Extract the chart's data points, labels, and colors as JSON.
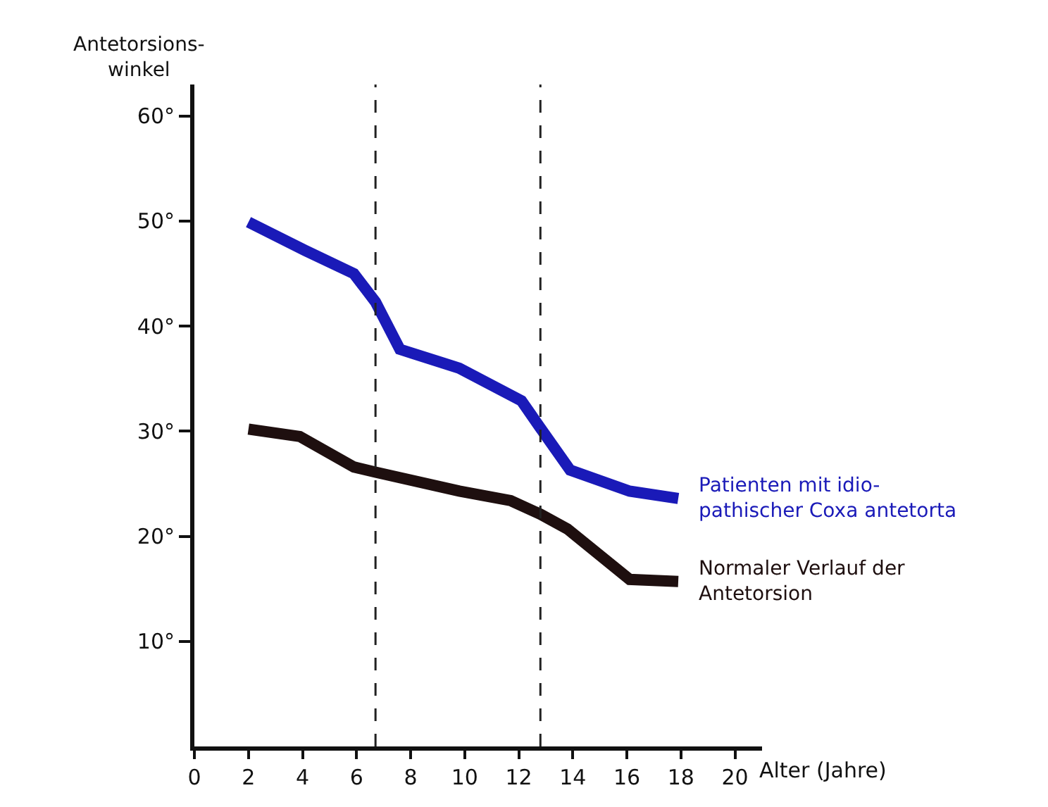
{
  "chart_data": {
    "type": "line",
    "xlabel": "Alter (Jahre)",
    "ylabel": "Antetorsions-\nwinkel",
    "xlim": [
      0,
      21
    ],
    "ylim": [
      0,
      63
    ],
    "xticks": [
      0,
      2,
      4,
      6,
      8,
      10,
      12,
      14,
      16,
      18,
      20
    ],
    "yticks": [
      {
        "value": 10,
        "label": "10°"
      },
      {
        "value": 20,
        "label": "20°"
      },
      {
        "value": 30,
        "label": "30°"
      },
      {
        "value": 40,
        "label": "40°"
      },
      {
        "value": 50,
        "label": "50°"
      },
      {
        "value": 60,
        "label": "60°"
      }
    ],
    "series": [
      {
        "name": "Patienten mit idio-\npathischer Coxa antetorta",
        "color": "#1a1ab8",
        "x": [
          2.0,
          4.1,
          5.9,
          6.7,
          7.6,
          9.8,
          12.1,
          12.8,
          13.9,
          16.1,
          17.9
        ],
        "values": [
          49.9,
          47.2,
          45,
          42.3,
          37.8,
          36,
          32.9,
          30.3,
          26.3,
          24.3,
          23.6
        ]
      },
      {
        "name": "Normaler Verlauf der\nAntetorsion",
        "color": "#1e0f0f",
        "x": [
          2.0,
          3.9,
          5.9,
          6.7,
          9.8,
          11.7,
          12.8,
          13.8,
          16.1,
          17.9
        ],
        "values": [
          30.2,
          29.5,
          26.6,
          26.1,
          24.3,
          23.4,
          22.1,
          20.7,
          15.9,
          15.7
        ]
      }
    ],
    "ref_lines": [
      {
        "axis": "x",
        "value": 6.7,
        "line_style": "dashed",
        "color": "#222222"
      },
      {
        "axis": "x",
        "value": 12.8,
        "line_style": "dashed",
        "color": "#222222"
      }
    ],
    "legend": false,
    "marker": "none",
    "line_style": "solid"
  }
}
